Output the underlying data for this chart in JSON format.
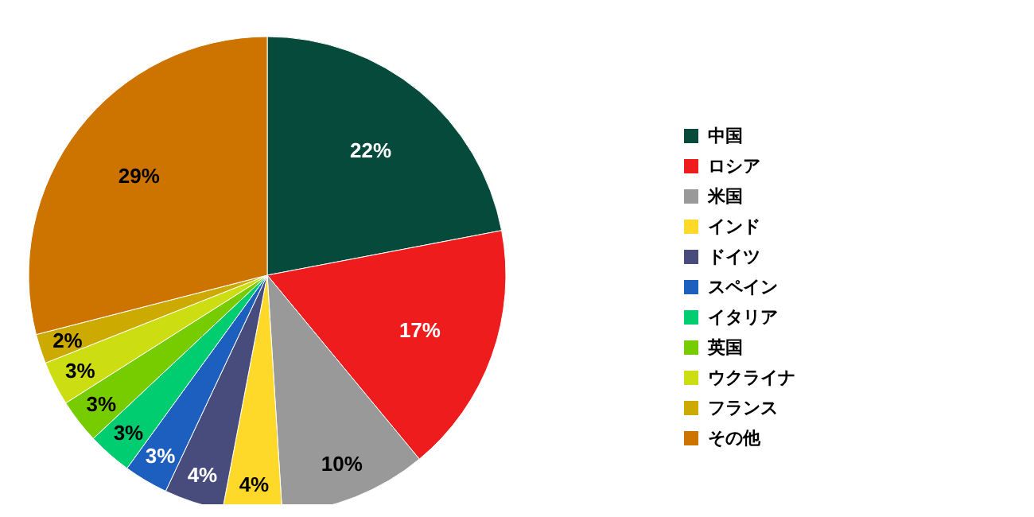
{
  "chart_data": {
    "type": "pie",
    "categories": [
      "中国",
      "ロシア",
      "米国",
      "インド",
      "ドイツ",
      "スペイン",
      "イタリア",
      "英国",
      "ウクライナ",
      "フランス",
      "その他"
    ],
    "values": [
      22,
      17,
      10,
      4,
      4,
      3,
      3,
      3,
      3,
      2,
      29
    ],
    "colors": [
      "#064a3c",
      "#ee1c1c",
      "#999999",
      "#ffd92a",
      "#474c7d",
      "#1d5fbf",
      "#00cc70",
      "#77cc00",
      "#ccdd11",
      "#ccaa00",
      "#cc7300"
    ],
    "value_labels": [
      "22%",
      "17%",
      "10%",
      "4%",
      "4%",
      "3%",
      "3%",
      "3%",
      "3%",
      "2%",
      "29%"
    ],
    "legend": "right"
  }
}
